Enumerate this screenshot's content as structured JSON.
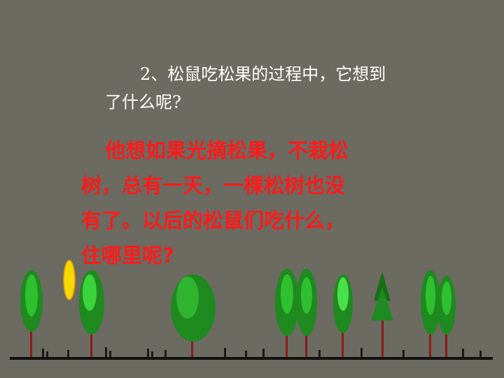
{
  "question": {
    "line1": "2、松鼠吃松果的过程中，它想到",
    "line2": "了什么呢?"
  },
  "answer": {
    "lines": [
      "他想如果光摘松果，不栽松",
      "树，总有一天，一棵松树也没",
      "有了。以后的松鼠们吃什么，",
      "住哪里呢?"
    ]
  },
  "colors": {
    "background": "#6b6b61",
    "question_text": "#ffffff",
    "answer_text": "#ff1a1a",
    "tree_foliage": "#1f9a1f",
    "tree_trunk": "#8b1a1a",
    "sun": "#f5d800"
  }
}
